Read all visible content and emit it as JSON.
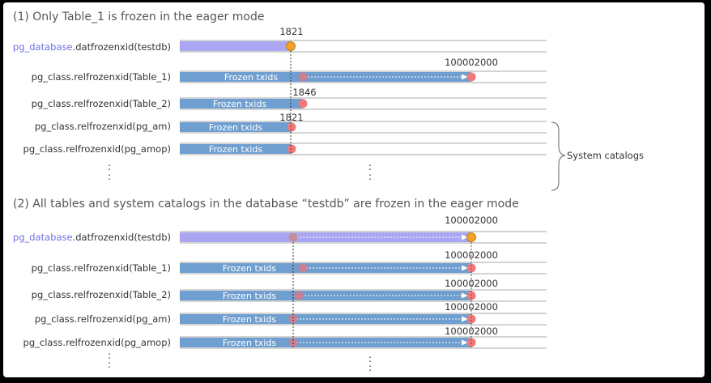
{
  "sections": [
    {
      "title": "(1) Only Table_1 is frozen in the eager mode",
      "rows": [
        {
          "db": "pg_database",
          "label": ".datfrozenxid(testdb)",
          "bar": "",
          "start_value": "1821",
          "end_value": ""
        },
        {
          "label": "pg_class.relfrozenxid(Table_1)",
          "bar": "Frozen txids",
          "start_value": "",
          "end_value": "100002000"
        },
        {
          "label": "pg_class.relfrozenxid(Table_2)",
          "bar": "Frozen txids",
          "start_value": "1846",
          "end_value": ""
        },
        {
          "label": "pg_class.relfrozenxid(pg_am)",
          "bar": "Frozen txids",
          "start_value": "1821",
          "end_value": ""
        },
        {
          "label": "pg_class.relfrozenxid(pg_amop)",
          "bar": "Frozen txids",
          "start_value": "",
          "end_value": ""
        }
      ],
      "annotation": "System catalogs"
    },
    {
      "title": "(2) All tables and system catalogs in the database “testdb” are frozen in the eager mode",
      "rows": [
        {
          "db": "pg_database",
          "label": ".datfrozenxid(testdb)",
          "bar": "",
          "start_value": "",
          "end_value": "100002000"
        },
        {
          "label": "pg_class.relfrozenxid(Table_1)",
          "bar": "Frozen txids",
          "start_value": "",
          "end_value": "100002000"
        },
        {
          "label": "pg_class.relfrozenxid(Table_2)",
          "bar": "Frozen txids",
          "start_value": "",
          "end_value": "100002000"
        },
        {
          "label": "pg_class.relfrozenxid(pg_am)",
          "bar": "Frozen txids",
          "start_value": "",
          "end_value": "100002000"
        },
        {
          "label": "pg_class.relfrozenxid(pg_amop)",
          "bar": "Frozen txids",
          "start_value": "",
          "end_value": "100002000"
        }
      ]
    }
  ],
  "ellipsis": ":",
  "colors": {
    "title_text": "#555555",
    "label_text": "#333333",
    "db_highlight": "#6f6fe6",
    "bar_blue": "#6f9fd0",
    "bar_lavender": "#aaa6f2",
    "marker_orange": "#f2a12a",
    "marker_red": "#f07878",
    "axis_line": "#999999"
  }
}
